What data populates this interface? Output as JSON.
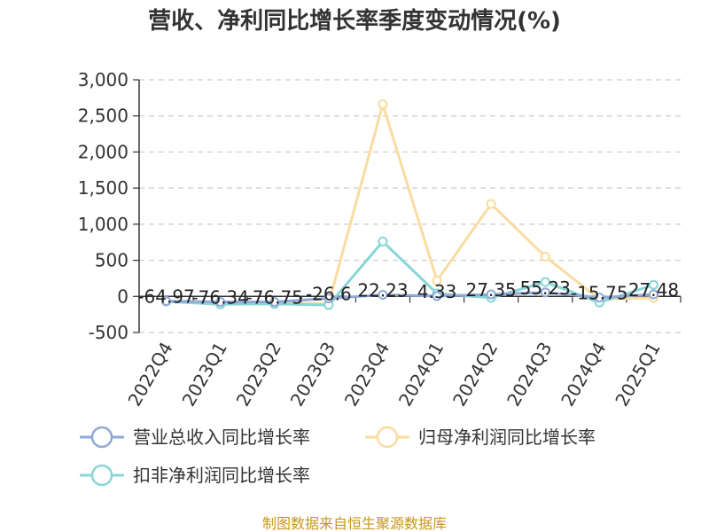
{
  "chart_data": {
    "type": "line",
    "title": "营收、净利同比增长率季度变动情况(%)",
    "categories": [
      "2022Q4",
      "2023Q1",
      "2023Q2",
      "2023Q3",
      "2023Q4",
      "2024Q1",
      "2024Q2",
      "2024Q3",
      "2024Q4",
      "2025Q1"
    ],
    "ylim": [
      -500,
      3000
    ],
    "yticks": [
      -500,
      0,
      500,
      1000,
      1500,
      2000,
      2500,
      3000
    ],
    "ytick_labels": [
      "-500",
      "0",
      "500",
      "1,000",
      "1,500",
      "2,000",
      "2,500",
      "3,000"
    ],
    "grid": true,
    "legend_position": "bottom",
    "series": [
      {
        "name": "营业总收入同比增长率",
        "color": "#8fa9d6",
        "values": [
          -64.97,
          -76.34,
          -76.75,
          -26.6,
          22.23,
          4.33,
          27.35,
          55.23,
          -15.75,
          27.48
        ],
        "labels": [
          "-64.97",
          "-76.34",
          "-76.75",
          "-26.6",
          "22.23",
          "4.33",
          "27.35",
          "55.23",
          "-15.75",
          "27.48"
        ]
      },
      {
        "name": "归母净利润同比增长率",
        "color": "#f9dca0",
        "values": [
          -65,
          -110,
          -90,
          -100,
          2660,
          220,
          1280,
          550,
          -40,
          -20
        ]
      },
      {
        "name": "扣非净利润同比增长率",
        "color": "#88d6d6",
        "values": [
          -70,
          -110,
          -105,
          -120,
          760,
          40,
          -20,
          200,
          -85,
          160
        ]
      }
    ]
  },
  "source": "制图数据来自恒生聚源数据库"
}
